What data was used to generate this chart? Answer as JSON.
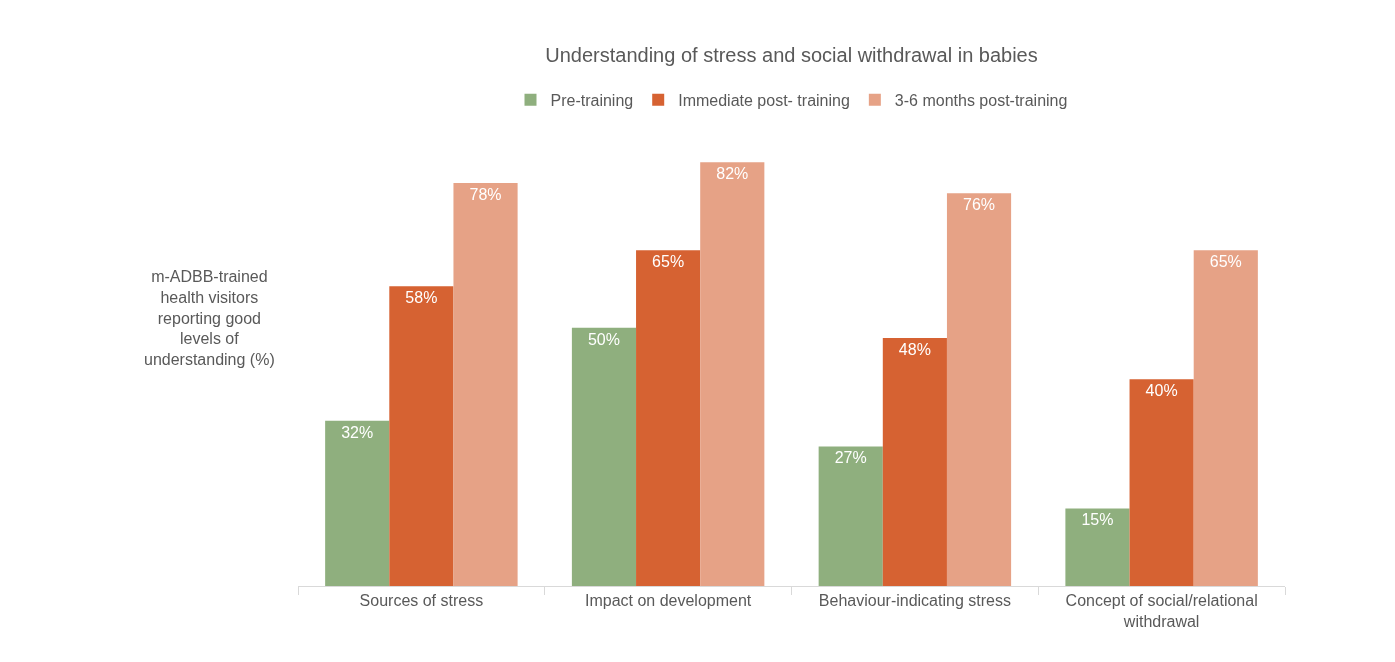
{
  "chart_data": {
    "type": "bar",
    "title": "Understanding of stress and social withdrawal in babies",
    "ylabel": "m-ADBB-trained health visitors reporting good levels of understanding (%)",
    "categories": [
      "Sources of stress",
      "Impact on development",
      "Behaviour-indicating stress",
      "Concept of social/relational withdrawal"
    ],
    "series": [
      {
        "name": "Pre-training",
        "color": "#8faf7e",
        "values": [
          32,
          50,
          27,
          15
        ],
        "value_labels": [
          "32%",
          "50%",
          "27%",
          "15%"
        ]
      },
      {
        "name": "Immediate post- training",
        "color": "#d66232",
        "values": [
          58,
          65,
          48,
          40
        ],
        "value_labels": [
          "58%",
          "65%",
          "48%",
          "40%"
        ]
      },
      {
        "name": "3-6 months post-training",
        "color": "#e6a286",
        "values": [
          78,
          82,
          76,
          65
        ],
        "value_labels": [
          "78%",
          "82%",
          "76%",
          "65%"
        ]
      }
    ],
    "legend": "top"
  }
}
